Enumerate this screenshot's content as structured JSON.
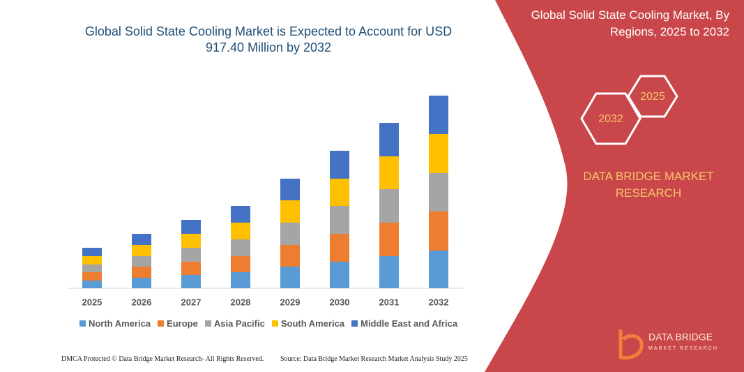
{
  "chart_data": {
    "type": "bar",
    "stacked": true,
    "title": "Global Solid State Cooling Market is Expected to Account for USD 917.40 Million by 2032",
    "categories": [
      "2025",
      "2026",
      "2027",
      "2028",
      "2029",
      "2030",
      "2031",
      "2032"
    ],
    "series": [
      {
        "name": "North America",
        "color": "#5b9bd5",
        "values": [
          11,
          15,
          19,
          23,
          31,
          38,
          46,
          54
        ]
      },
      {
        "name": "Europe",
        "color": "#ed7d31",
        "values": [
          12,
          16,
          19,
          23,
          31,
          40,
          48,
          56
        ]
      },
      {
        "name": "Asia Pacific",
        "color": "#a5a5a5",
        "values": [
          11,
          15,
          20,
          24,
          32,
          40,
          48,
          55
        ]
      },
      {
        "name": "South America",
        "color": "#ffc000",
        "values": [
          12,
          16,
          20,
          24,
          32,
          39,
          47,
          56
        ]
      },
      {
        "name": "Middle East and Africa",
        "color": "#4472c4",
        "values": [
          12,
          16,
          20,
          24,
          31,
          40,
          48,
          55
        ]
      }
    ]
  },
  "panel": {
    "title": "Global Solid State Cooling Market, By Regions, 2025 to 2032",
    "badges": [
      "2025",
      "2032"
    ],
    "brand": "DATA BRIDGE MARKET RESEARCH"
  },
  "logo": {
    "name": "DATA BRIDGE",
    "tagline": "MARKET RESEARCH"
  },
  "footer": {
    "left": "DMCA Protected © Data Bridge Market Research- All Rights Reserved.",
    "right": "Source: Data Bridge Market Research  Market Analysis Study 2025"
  }
}
